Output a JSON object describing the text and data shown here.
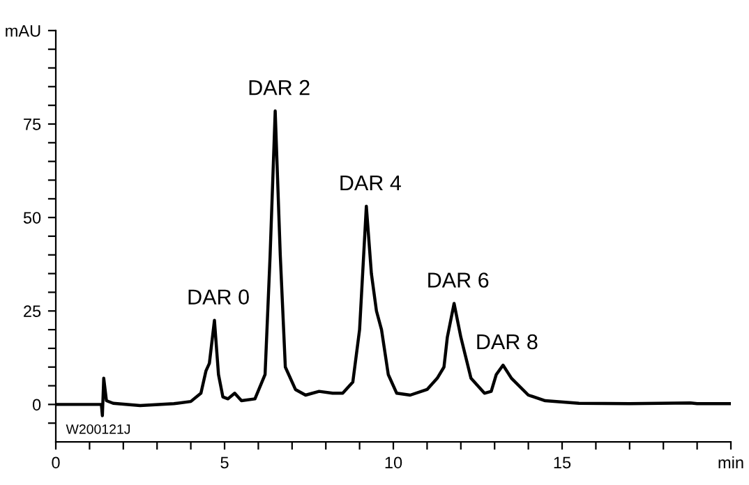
{
  "chart_data": {
    "type": "line",
    "x": [
      0,
      1.35,
      1.38,
      1.42,
      1.5,
      1.7,
      2.5,
      3.5,
      4.0,
      4.3,
      4.45,
      4.55,
      4.7,
      4.82,
      4.95,
      5.1,
      5.3,
      5.5,
      5.9,
      6.2,
      6.35,
      6.5,
      6.65,
      6.8,
      7.1,
      7.4,
      7.8,
      8.2,
      8.5,
      8.8,
      9.0,
      9.2,
      9.35,
      9.5,
      9.65,
      9.85,
      10.1,
      10.5,
      11.0,
      11.3,
      11.5,
      11.6,
      11.8,
      12.0,
      12.3,
      12.7,
      12.9,
      13.05,
      13.25,
      13.5,
      14.0,
      14.5,
      15.5,
      17,
      18.8,
      19,
      20
    ],
    "series": [
      {
        "color": "#000000",
        "values": [
          0,
          0,
          -3,
          7,
          1,
          0.3,
          -0.3,
          0.2,
          0.8,
          3,
          9,
          11,
          22.5,
          8,
          2,
          1.5,
          3,
          1,
          1.5,
          8,
          40,
          78.5,
          40,
          10,
          4,
          2.5,
          3.5,
          3,
          3,
          6,
          20,
          53,
          35,
          25,
          20,
          8,
          3,
          2.5,
          4,
          7,
          10,
          18,
          27,
          18,
          7,
          3,
          3.5,
          8,
          10.5,
          7,
          2.5,
          1,
          0.3,
          0.2,
          0.4,
          0.2,
          0.2
        ]
      }
    ],
    "xlim": [
      0,
      20
    ],
    "xticks": [
      0,
      {
        "value": 1,
        "label": null
      },
      {
        "value": 2,
        "label": null
      },
      {
        "value": 3,
        "label": null
      },
      {
        "value": 4,
        "label": null
      },
      5,
      {
        "value": 6,
        "label": null
      },
      {
        "value": 7,
        "label": null
      },
      {
        "value": 8,
        "label": null
      },
      {
        "value": 9,
        "label": null
      },
      10,
      {
        "value": 11,
        "label": null
      },
      {
        "value": 12,
        "label": null
      },
      {
        "value": 13,
        "label": null
      },
      {
        "value": 14,
        "label": null
      },
      15,
      {
        "value": 16,
        "label": null
      },
      {
        "value": 17,
        "label": null
      },
      {
        "value": 18,
        "label": null
      },
      {
        "value": 19,
        "label": null
      },
      {
        "value": 20,
        "label": "min"
      }
    ],
    "ylim": [
      -10,
      100
    ],
    "yticks": [
      {
        "value": -5,
        "label": null
      },
      0,
      {
        "value": 5,
        "label": null
      },
      {
        "value": 10,
        "label": null
      },
      {
        "value": 15,
        "label": null
      },
      {
        "value": 20,
        "label": null
      },
      25,
      {
        "value": 30,
        "label": null
      },
      {
        "value": 35,
        "label": null
      },
      {
        "value": 40,
        "label": null
      },
      {
        "value": 45,
        "label": null
      },
      50,
      {
        "value": 55,
        "label": null
      },
      {
        "value": 60,
        "label": null
      },
      {
        "value": 65,
        "label": null
      },
      {
        "value": 70,
        "label": null
      },
      75,
      {
        "value": 80,
        "label": null
      },
      {
        "value": 85,
        "label": null
      },
      {
        "value": 90,
        "label": null
      },
      {
        "value": 95,
        "label": null
      },
      {
        "value": 100,
        "label": "mAU"
      }
    ],
    "grid": false,
    "marker": "none",
    "line_style": "solid",
    "annotations": [
      {
        "text": "DAR 0",
        "x": 4.7,
        "y": 22.5
      },
      {
        "text": "DAR 2",
        "x": 6.5,
        "y": 78.5
      },
      {
        "text": "DAR 4",
        "x": 9.2,
        "y": 53
      },
      {
        "text": "DAR 6",
        "x": 11.8,
        "y": 27
      },
      {
        "text": "DAR 8",
        "x": 13.25,
        "y": 10.5
      },
      "W200121J"
    ]
  }
}
